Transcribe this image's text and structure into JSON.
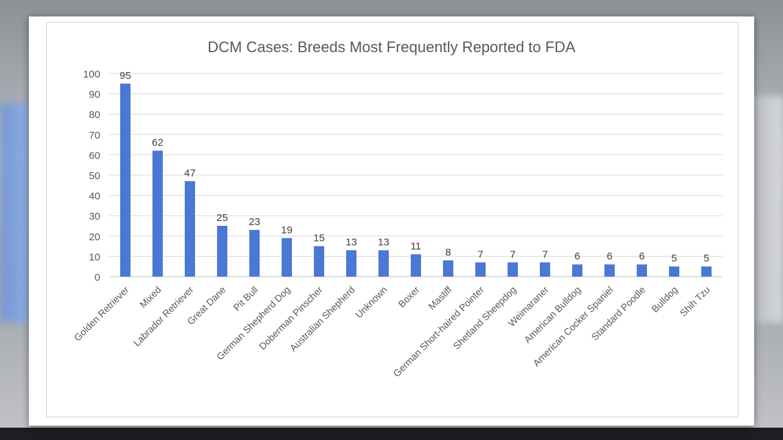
{
  "chart_data": {
    "type": "bar",
    "title": "DCM Cases: Breeds Most Frequently Reported to FDA",
    "xlabel": "",
    "ylabel": "",
    "ylim": [
      0,
      100
    ],
    "yticks": [
      0,
      10,
      20,
      30,
      40,
      50,
      60,
      70,
      80,
      90,
      100
    ],
    "grid": true,
    "legend": "none",
    "bar_color": "#4a78d4",
    "categories": [
      "Golden Retriever",
      "Mixed",
      "Labrador Retriever",
      "Great Dane",
      "Pit Bull",
      "German Shepherd Dog",
      "Doberman Pinscher",
      "Australian Shepherd",
      "Unknown",
      "Boxer",
      "Mastiff",
      "German Short-haired Pointer",
      "Shetland Sheepdog",
      "Weimaraner",
      "American Bulldog",
      "American Cocker Spaniel",
      "Standard Poodle",
      "Bulldog",
      "Shih Tzu"
    ],
    "values": [
      95,
      62,
      47,
      25,
      23,
      19,
      15,
      13,
      13,
      11,
      8,
      7,
      7,
      7,
      6,
      6,
      6,
      5,
      5
    ]
  }
}
